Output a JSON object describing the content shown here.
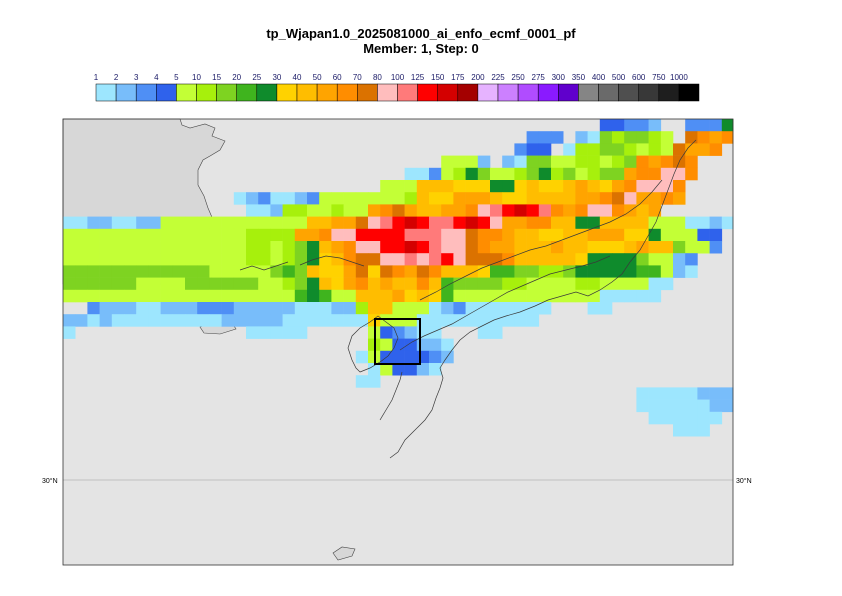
{
  "title": "tp_Wjapan1.0_2025081000_ai_enfo_ecmf_0001_pf",
  "subtitle": "Member: 1, Step: 0",
  "legend": {
    "levels": [
      "1",
      "2",
      "3",
      "4",
      "5",
      "10",
      "15",
      "20",
      "25",
      "30",
      "40",
      "50",
      "60",
      "70",
      "80",
      "100",
      "125",
      "150",
      "175",
      "200",
      "225",
      "250",
      "275",
      "300",
      "350",
      "400",
      "500",
      "600",
      "750",
      "1000"
    ],
    "colors": [
      "#9de6fe",
      "#78bdfa",
      "#4f8ff5",
      "#2f62ec",
      "#c3ff36",
      "#a7f00c",
      "#7ed321",
      "#3fb41e",
      "#0f8b2c",
      "#ffd200",
      "#ffbd00",
      "#ffa400",
      "#ff8d00",
      "#db7200",
      "#ffbdbd",
      "#ff7a7a",
      "#ff0000",
      "#d40000",
      "#a40000",
      "#e6b3ff",
      "#cc80ff",
      "#b04cff",
      "#8a1aff",
      "#6000cc",
      "#858585",
      "#6a6a6a",
      "#4f4f4f",
      "#383838",
      "#1e1e1e",
      "#000000"
    ]
  },
  "map": {
    "lat_label_left": "30°N",
    "lat_label_right": "30°N",
    "land_color": "#d7d7d7",
    "sea_color": "#e4e4e4"
  }
}
